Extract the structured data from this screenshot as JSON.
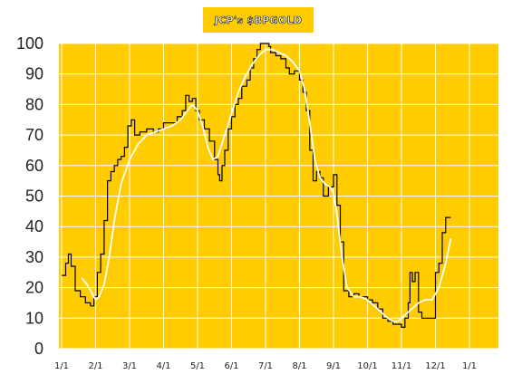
{
  "chart_data": {
    "type": "line",
    "title": "JCP's $BPGOLD",
    "xlabel": "",
    "ylabel": "",
    "ylim": [
      0,
      100
    ],
    "y_ticks": [
      0,
      10,
      20,
      30,
      40,
      50,
      60,
      70,
      80,
      90,
      100
    ],
    "x_tick_labels": [
      "1/1",
      "2/1",
      "3/1",
      "4/1",
      "5/1",
      "6/1",
      "7/1",
      "8/1",
      "9/1",
      "10/1",
      "11/1",
      "12/1",
      "1/1"
    ],
    "grid": true,
    "series": [
      {
        "kind": "step",
        "values": [
          [
            0,
            24
          ],
          [
            0.12,
            28
          ],
          [
            0.2,
            31
          ],
          [
            0.28,
            27
          ],
          [
            0.4,
            19
          ],
          [
            0.55,
            17
          ],
          [
            0.7,
            15
          ],
          [
            0.85,
            14
          ],
          [
            0.95,
            17
          ],
          [
            1.05,
            25
          ],
          [
            1.15,
            31
          ],
          [
            1.25,
            42
          ],
          [
            1.35,
            55
          ],
          [
            1.45,
            58
          ],
          [
            1.55,
            60
          ],
          [
            1.65,
            62
          ],
          [
            1.75,
            63
          ],
          [
            1.85,
            66
          ],
          [
            1.95,
            73
          ],
          [
            2.05,
            75
          ],
          [
            2.15,
            70
          ],
          [
            2.3,
            71
          ],
          [
            2.5,
            72
          ],
          [
            2.7,
            71
          ],
          [
            2.85,
            72
          ],
          [
            3.0,
            74
          ],
          [
            3.2,
            74
          ],
          [
            3.4,
            76
          ],
          [
            3.55,
            78
          ],
          [
            3.65,
            83
          ],
          [
            3.75,
            81
          ],
          [
            3.85,
            82
          ],
          [
            3.95,
            78
          ],
          [
            4.05,
            75
          ],
          [
            4.2,
            72
          ],
          [
            4.35,
            68
          ],
          [
            4.5,
            62
          ],
          [
            4.6,
            57
          ],
          [
            4.65,
            55
          ],
          [
            4.72,
            60
          ],
          [
            4.8,
            65
          ],
          [
            4.9,
            72
          ],
          [
            5.0,
            76
          ],
          [
            5.1,
            80
          ],
          [
            5.2,
            82
          ],
          [
            5.3,
            86
          ],
          [
            5.45,
            88
          ],
          [
            5.55,
            92
          ],
          [
            5.65,
            95
          ],
          [
            5.75,
            98
          ],
          [
            5.85,
            100
          ],
          [
            6.0,
            100
          ],
          [
            6.1,
            99
          ],
          [
            6.15,
            97
          ],
          [
            6.3,
            96
          ],
          [
            6.45,
            95
          ],
          [
            6.6,
            92
          ],
          [
            6.7,
            90
          ],
          [
            6.85,
            91
          ],
          [
            7.0,
            88
          ],
          [
            7.1,
            84
          ],
          [
            7.2,
            78
          ],
          [
            7.3,
            65
          ],
          [
            7.4,
            55
          ],
          [
            7.5,
            58
          ],
          [
            7.6,
            56
          ],
          [
            7.7,
            50
          ],
          [
            7.85,
            53
          ],
          [
            8.0,
            57
          ],
          [
            8.1,
            47
          ],
          [
            8.2,
            35
          ],
          [
            8.3,
            19
          ],
          [
            8.45,
            17
          ],
          [
            8.6,
            18
          ],
          [
            8.75,
            17
          ],
          [
            8.9,
            17
          ],
          [
            9.0,
            16
          ],
          [
            9.15,
            15
          ],
          [
            9.3,
            13
          ],
          [
            9.45,
            10
          ],
          [
            9.6,
            9
          ],
          [
            9.75,
            8
          ],
          [
            9.9,
            8
          ],
          [
            10.0,
            7
          ],
          [
            10.1,
            10
          ],
          [
            10.2,
            15
          ],
          [
            10.25,
            25
          ],
          [
            10.32,
            22
          ],
          [
            10.4,
            25
          ],
          [
            10.5,
            12
          ],
          [
            10.6,
            10
          ],
          [
            10.75,
            10
          ],
          [
            10.9,
            10
          ],
          [
            11.0,
            25
          ],
          [
            11.1,
            28
          ],
          [
            11.2,
            38
          ],
          [
            11.3,
            43
          ],
          [
            11.45,
            43
          ]
        ]
      },
      {
        "kind": "smooth",
        "values": [
          [
            0.6,
            23
          ],
          [
            0.75,
            21
          ],
          [
            0.9,
            18
          ],
          [
            1.0,
            16
          ],
          [
            1.1,
            17
          ],
          [
            1.25,
            21
          ],
          [
            1.4,
            30
          ],
          [
            1.55,
            42
          ],
          [
            1.75,
            54
          ],
          [
            2.0,
            62
          ],
          [
            2.25,
            67
          ],
          [
            2.5,
            70
          ],
          [
            2.75,
            71
          ],
          [
            3.0,
            72
          ],
          [
            3.25,
            73
          ],
          [
            3.5,
            75
          ],
          [
            3.7,
            78
          ],
          [
            3.85,
            80
          ],
          [
            4.0,
            78
          ],
          [
            4.15,
            73
          ],
          [
            4.3,
            66
          ],
          [
            4.45,
            62
          ],
          [
            4.6,
            63
          ],
          [
            4.8,
            70
          ],
          [
            5.0,
            77
          ],
          [
            5.2,
            84
          ],
          [
            5.4,
            89
          ],
          [
            5.6,
            93
          ],
          [
            5.8,
            96
          ],
          [
            6.0,
            98
          ],
          [
            6.2,
            98
          ],
          [
            6.4,
            97
          ],
          [
            6.6,
            96
          ],
          [
            6.8,
            94
          ],
          [
            7.0,
            91
          ],
          [
            7.15,
            85
          ],
          [
            7.3,
            74
          ],
          [
            7.45,
            62
          ],
          [
            7.6,
            56
          ],
          [
            7.75,
            54
          ],
          [
            7.9,
            53
          ],
          [
            8.0,
            51
          ],
          [
            8.1,
            44
          ],
          [
            8.25,
            30
          ],
          [
            8.4,
            20
          ],
          [
            8.6,
            17
          ],
          [
            8.8,
            17
          ],
          [
            9.0,
            16
          ],
          [
            9.2,
            14
          ],
          [
            9.4,
            12
          ],
          [
            9.6,
            10
          ],
          [
            9.75,
            9
          ],
          [
            9.9,
            9
          ],
          [
            10.1,
            11
          ],
          [
            10.3,
            13
          ],
          [
            10.5,
            15
          ],
          [
            10.7,
            16
          ],
          [
            10.9,
            16
          ],
          [
            11.1,
            20
          ],
          [
            11.3,
            28
          ],
          [
            11.45,
            36
          ]
        ]
      }
    ]
  },
  "colors": {
    "plot_background": "#ffcc00",
    "grid": "#ffffff",
    "price_line": "#000000",
    "smooth_line": "#ffffff",
    "axis_text": "#222222"
  }
}
